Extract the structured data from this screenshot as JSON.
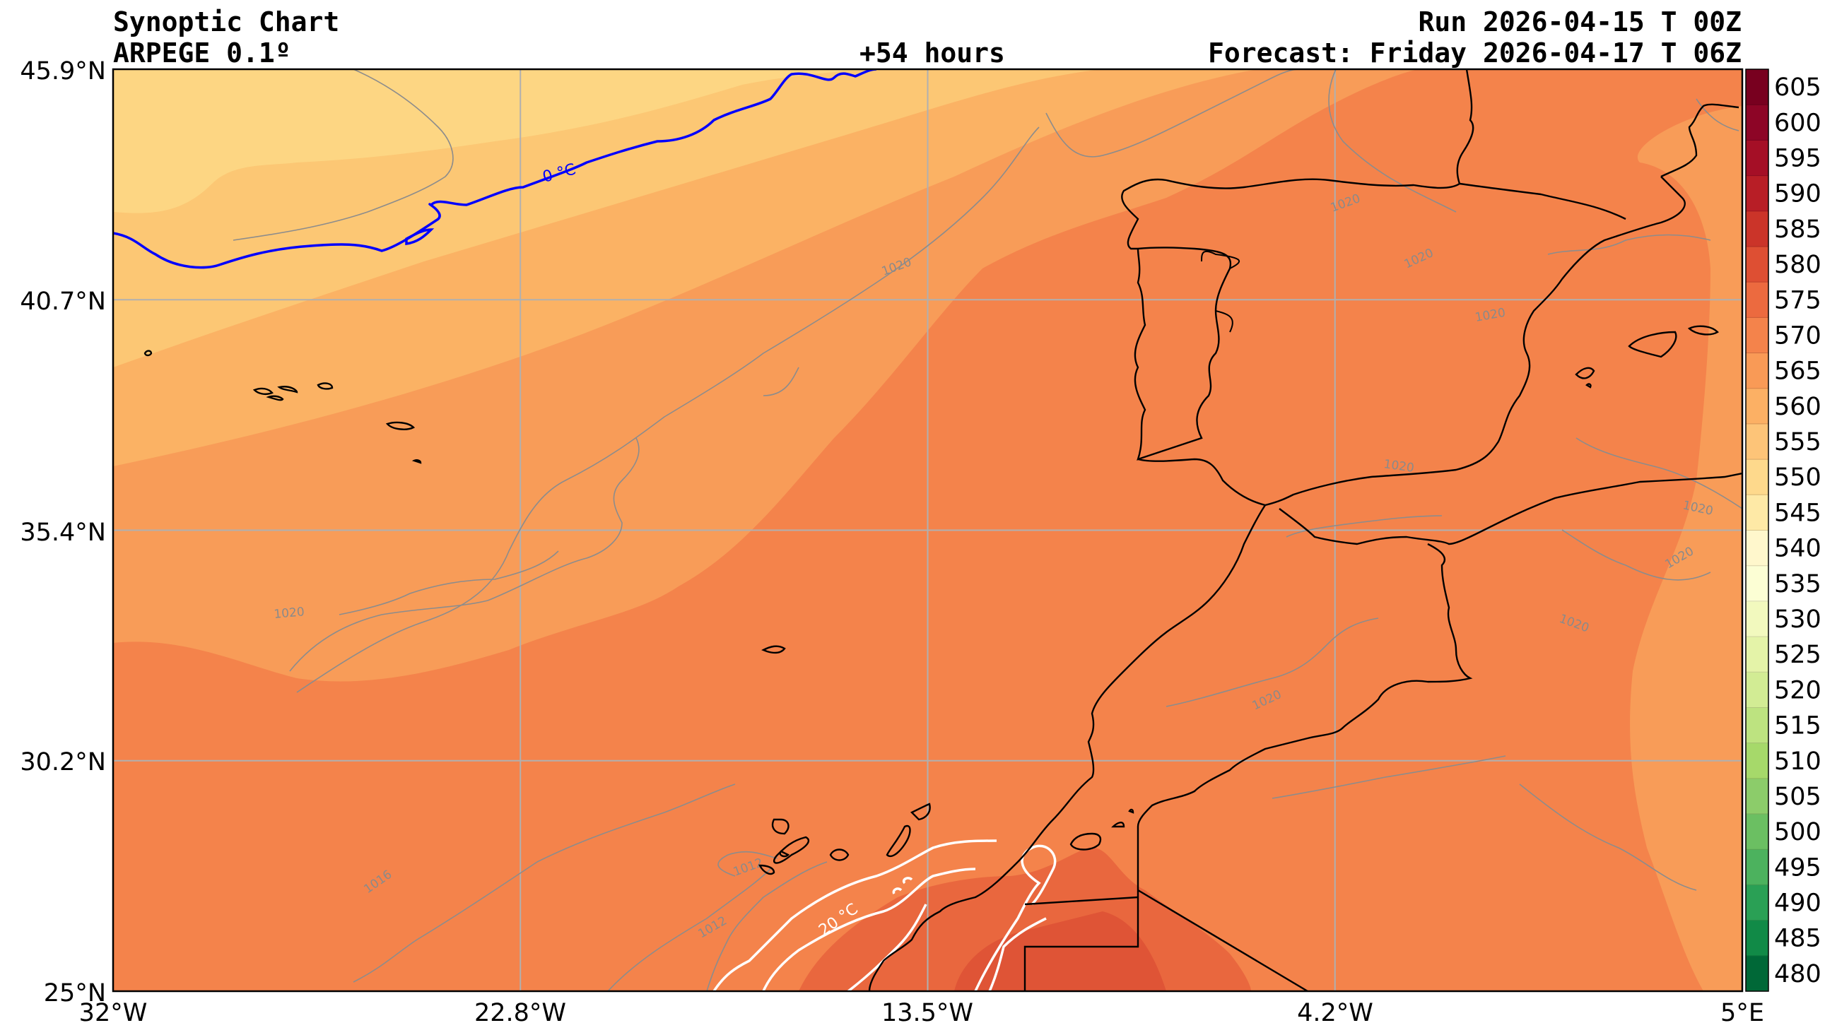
{
  "header": {
    "title": "Synoptic Chart",
    "model": "ARPEGE 0.1º",
    "lead": "+54 hours",
    "run": "Run 2026-04-15 T 00Z",
    "forecast": "Forecast: Friday 2026-04-17 T 06Z"
  },
  "axes": {
    "lat_ticks": [
      "45.9°N",
      "40.7°N",
      "35.4°N",
      "30.2°N",
      "25°N"
    ],
    "lon_ticks": [
      "32°W",
      "22.8°W",
      "13.5°W",
      "4.2°W",
      "5°E"
    ]
  },
  "colorbar": {
    "levels": [
      "480",
      "485",
      "490",
      "495",
      "500",
      "505",
      "510",
      "515",
      "520",
      "525",
      "530",
      "535",
      "540",
      "545",
      "550",
      "555",
      "560",
      "565",
      "570",
      "575",
      "580",
      "585",
      "590",
      "595",
      "600",
      "605"
    ],
    "colors": [
      "#006837",
      "#118a47",
      "#2aa055",
      "#4cb25e",
      "#6bbf62",
      "#8ccc6a",
      "#a6d96a",
      "#bde380",
      "#d2ec94",
      "#e4f3a8",
      "#f2f9be",
      "#fcfed4",
      "#fff7cc",
      "#fee9a6",
      "#fed98c",
      "#fdc478",
      "#fcb064",
      "#f99a56",
      "#f4834b",
      "#ec6a3f",
      "#de4f33",
      "#cb3429",
      "#b81e26",
      "#a50f26",
      "#8d0526",
      "#78001f"
    ]
  },
  "map": {
    "fills": {
      "band_550": "#fdd683",
      "band_555": "#fcc774",
      "band_560": "#fbb264",
      "band_565": "#f89c58",
      "band_570": "#f4834b",
      "band_575": "#e9673e",
      "band_580": "#df5436"
    },
    "isobar_labels": [
      "1020",
      "1020",
      "1020",
      "1020",
      "1020",
      "1020",
      "1020",
      "1020",
      "1020",
      "1020",
      "1016",
      "1012",
      "1012"
    ],
    "temperature_labels": [
      "0 °C",
      "20 °C"
    ],
    "colors": {
      "coast": "#000000",
      "isobar": "#8c8c8c",
      "iso0": "#0000ff",
      "iso20": "#ffffff",
      "grid": "#b0b0b0"
    }
  }
}
